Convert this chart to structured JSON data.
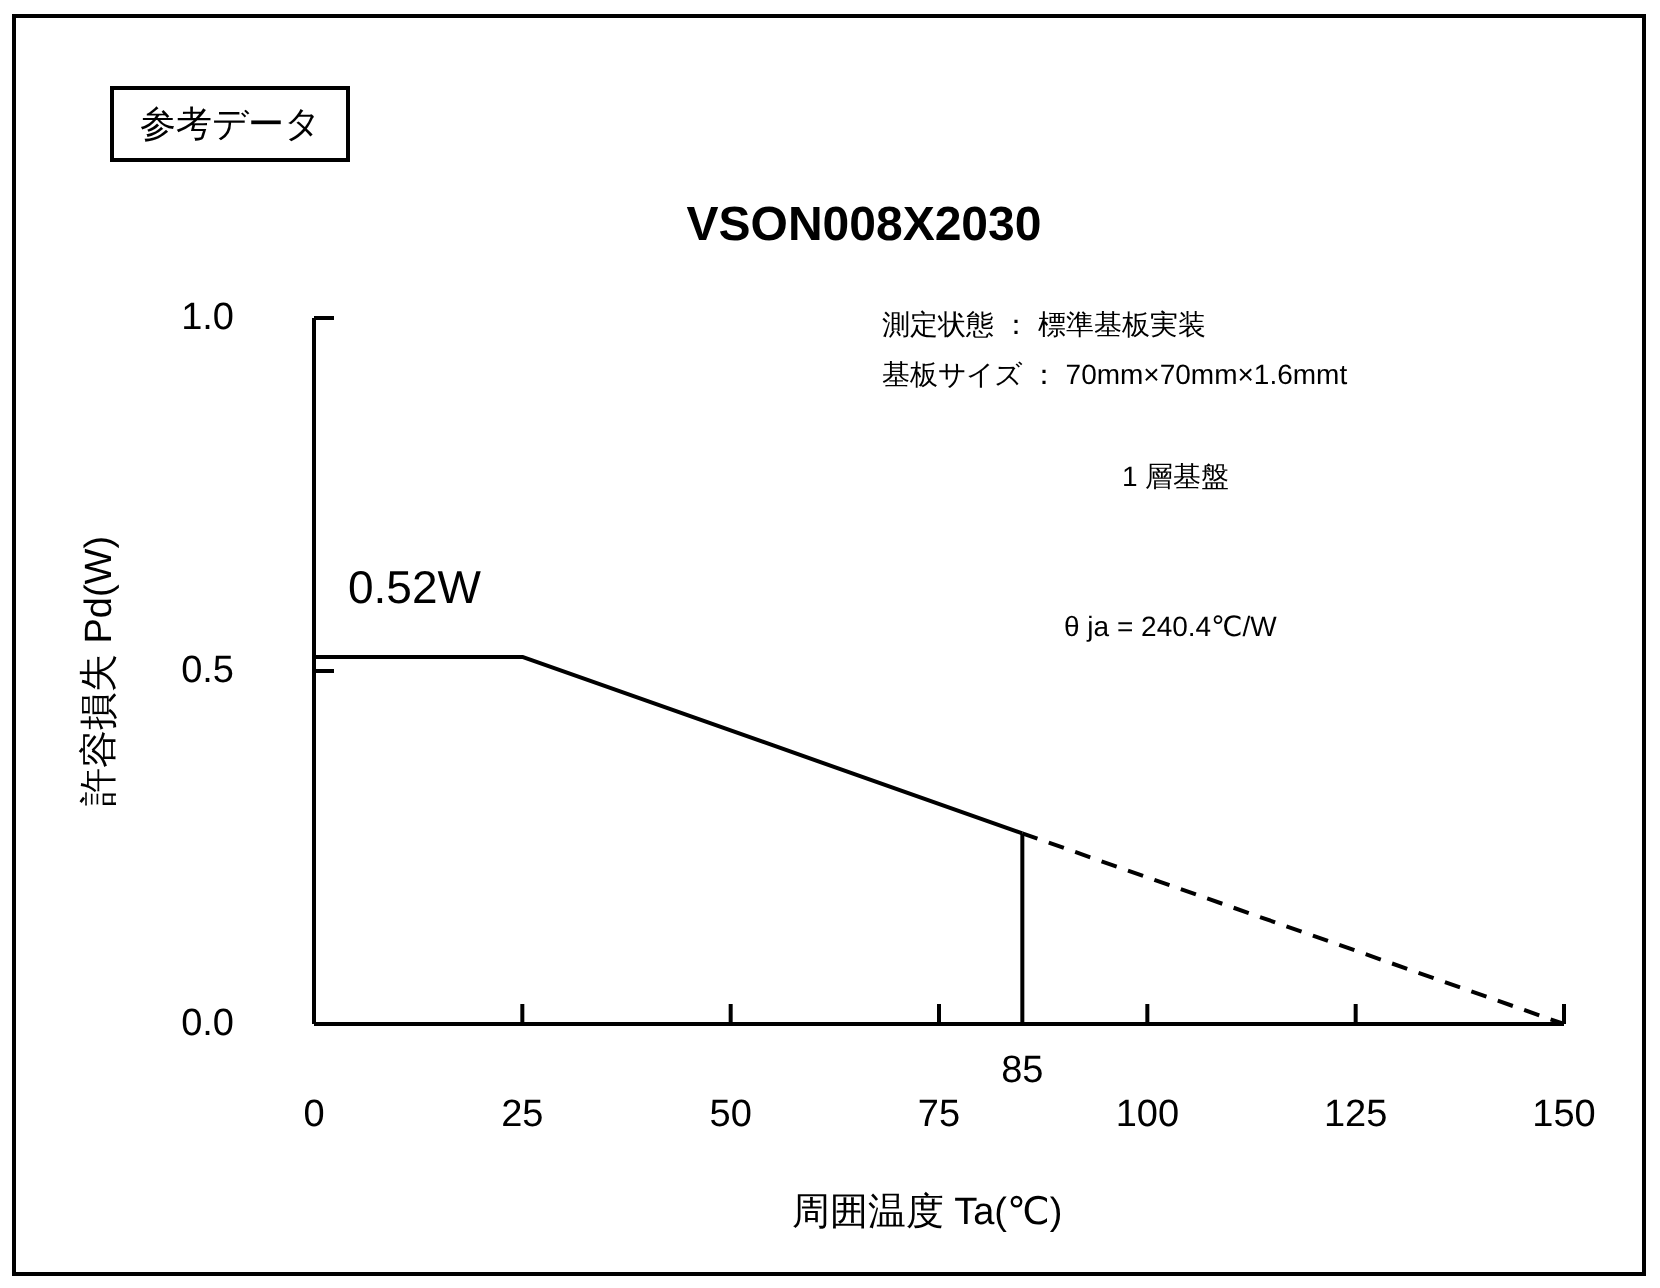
{
  "chart_data": {
    "type": "line",
    "title": "VSON008X2030",
    "xlabel": "周囲温度 Ta(℃)",
    "ylabel": "許容損失 Pd(W)",
    "series": [
      {
        "x": [
          0,
          25,
          85
        ],
        "values": [
          0.52,
          0.52,
          0.27
        ],
        "color": "#000000",
        "line_style": "solid"
      },
      {
        "x": [
          85,
          150
        ],
        "values": [
          0.27,
          0
        ],
        "color": "#000000",
        "line_style": "dashed"
      },
      {
        "x": [
          85,
          85
        ],
        "values": [
          0,
          0.27
        ],
        "color": "#000000",
        "line_style": "solid"
      }
    ],
    "xlim": [
      0,
      150
    ],
    "xticks": [
      0,
      25,
      50,
      75,
      100,
      125,
      150
    ],
    "ylim": [
      0,
      1
    ],
    "yticks": [
      {
        "value": 0,
        "label": "0.0"
      },
      0.5,
      {
        "value": 1,
        "label": "1.0"
      }
    ],
    "annotations": [
      "参考データ",
      {
        "text": "0.52W",
        "x": 0,
        "y": 0.52
      },
      {
        "text": "85",
        "x": 85,
        "y": 0
      },
      "測定状態 ： 標準基板実装",
      "基板サイズ ： 70mm×70mm×1.6mmt",
      "1 層基盤",
      "θ ja = 240.4℃/W"
    ]
  }
}
